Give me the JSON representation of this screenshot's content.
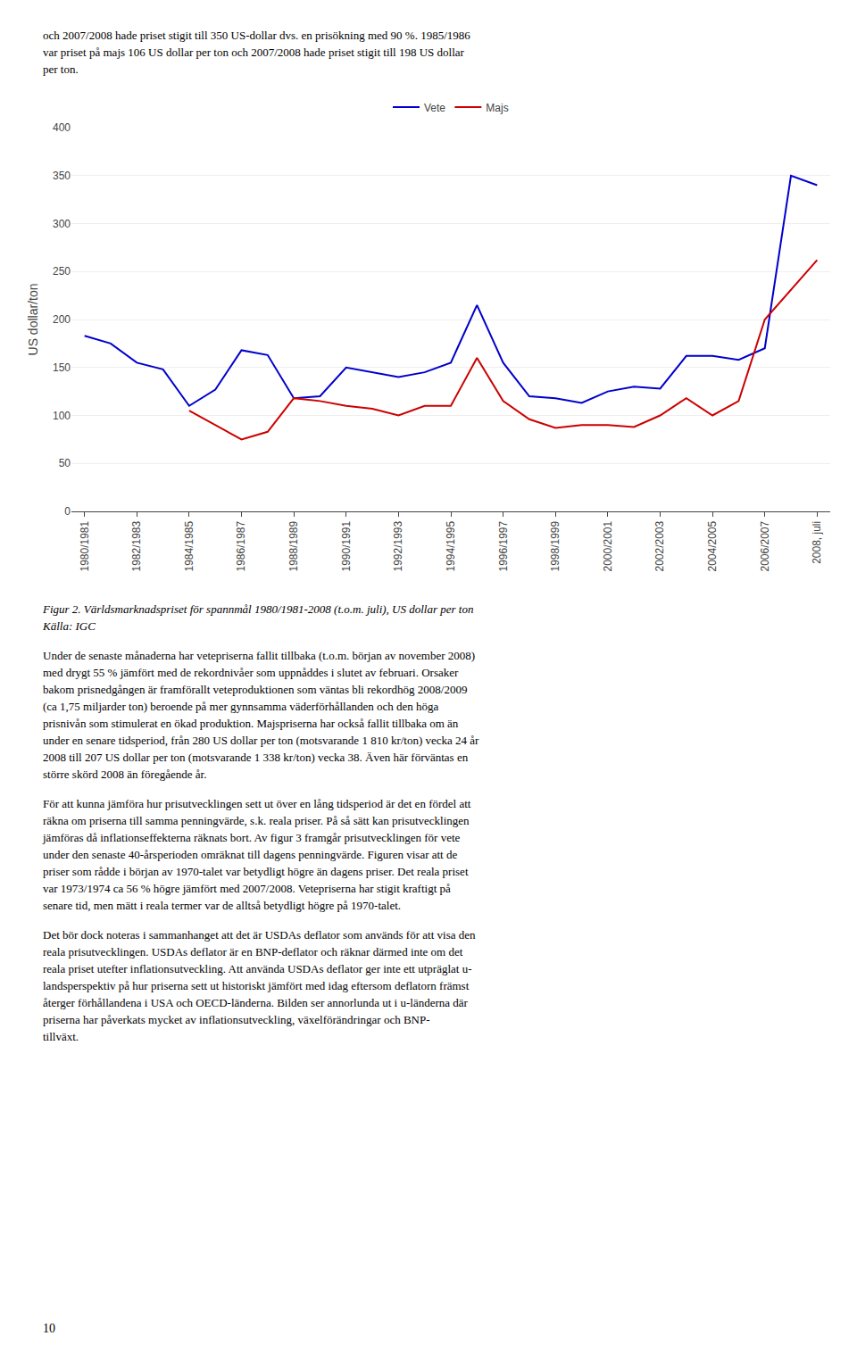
{
  "chart_data": {
    "type": "line",
    "categories": [
      "1980/1981",
      null,
      "1982/1983",
      null,
      "1984/1985",
      null,
      "1986/1987",
      null,
      "1988/1989",
      null,
      "1990/1991",
      null,
      "1992/1993",
      null,
      "1994/1995",
      null,
      "1996/1997",
      null,
      "1998/1999",
      null,
      "2000/2001",
      null,
      "2002/2003",
      null,
      "2004/2005",
      null,
      "2006/2007",
      null,
      "2008, juli"
    ],
    "series": [
      {
        "name": "Vete",
        "color": "#0000cc",
        "values": [
          183,
          175,
          155,
          148,
          110,
          127,
          168,
          163,
          118,
          120,
          150,
          145,
          140,
          145,
          155,
          215,
          155,
          120,
          118,
          113,
          125,
          130,
          128,
          162,
          162,
          158,
          170,
          350,
          340
        ]
      },
      {
        "name": "Majs",
        "color": "#cc0000",
        "values": [
          null,
          null,
          null,
          null,
          105,
          null,
          75,
          83,
          118,
          115,
          110,
          107,
          100,
          110,
          110,
          160,
          115,
          96,
          87,
          90,
          90,
          88,
          100,
          118,
          100,
          115,
          200,
          null,
          262
        ]
      }
    ],
    "ylabel": "US dollar/ton",
    "ylim": [
      0,
      400
    ],
    "yticks": [
      0,
      50,
      100,
      150,
      200,
      250,
      300,
      350,
      400
    ],
    "grid": true,
    "legend": "top"
  },
  "text_above": "och 2007/2008 hade priset stigit till 350 US-dollar dvs. en prisökning med 90 %. 1985/1986\nvar priset på majs 106 US dollar per ton och 2007/2008 hade priset stigit till 198 US dollar\nper ton.",
  "caption": "Figur 2. Världsmarknadspriset för spannmål 1980/1981-2008 (t.o.m. juli), US dollar per ton",
  "source": "Källa: IGC",
  "text_below": [
    "Under de senaste månaderna har vetepriserna fallit tillbaka (t.o.m. början av november 2008)\nmed drygt 55 % jämfört med de rekordnivåer som uppnåddes i slutet av februari. Orsaker\nbakom prisnedgången är framförallt veteproduktionen som väntas bli rekordhög 2008/2009\n(ca 1,75 miljarder ton) beroende på mer gynnsamma väderförhållanden och den höga\nprisnivån som stimulerat en ökad produktion. Majspriserna har också fallit tillbaka om än\nunder en senare tidsperiod, från 280 US dollar per ton (motsvarande 1 810 kr/ton) vecka 24 år\n2008 till 207 US dollar per ton (motsvarande 1 338 kr/ton) vecka 38. Även här förväntas en\nstörre skörd 2008 än föregående år.",
    "För att kunna jämföra hur prisutvecklingen sett ut över en lång tidsperiod är det en fördel att\nräkna om priserna till samma penningvärde, s.k. reala priser. På så sätt kan prisutvecklingen\njämföras då inflationseffekterna räknats bort. Av figur 3 framgår prisutvecklingen för vete\nunder den senaste 40-årsperioden omräknat till dagens penningvärde. Figuren visar att de\npriser som rådde i början av 1970-talet var betydligt högre än dagens priser. Det reala priset\nvar 1973/1974 ca 56 % högre jämfört med 2007/2008. Vetepriserna har stigit kraftigt på\nsenare tid, men mätt i reala termer var de alltså betydligt högre på 1970-talet.",
    "Det bör dock noteras i sammanhanget att det är USDAs deflator som används för att visa den\nreala prisutvecklingen. USDAs deflator är en BNP-deflator och räknar därmed inte om det\nreala priset utefter inflationsutveckling. Att använda USDAs deflator ger inte ett utpräglat u-\nlandsperspektiv på hur priserna sett ut historiskt jämfört med idag eftersom deflatorn främst\nåterger förhållandena i USA och OECD-länderna. Bilden ser annorlunda ut i u-länderna där\npriserna har påverkats mycket av inflationsutveckling, växelförändringar och BNP-\ntillväxt."
  ],
  "page_number": "10"
}
